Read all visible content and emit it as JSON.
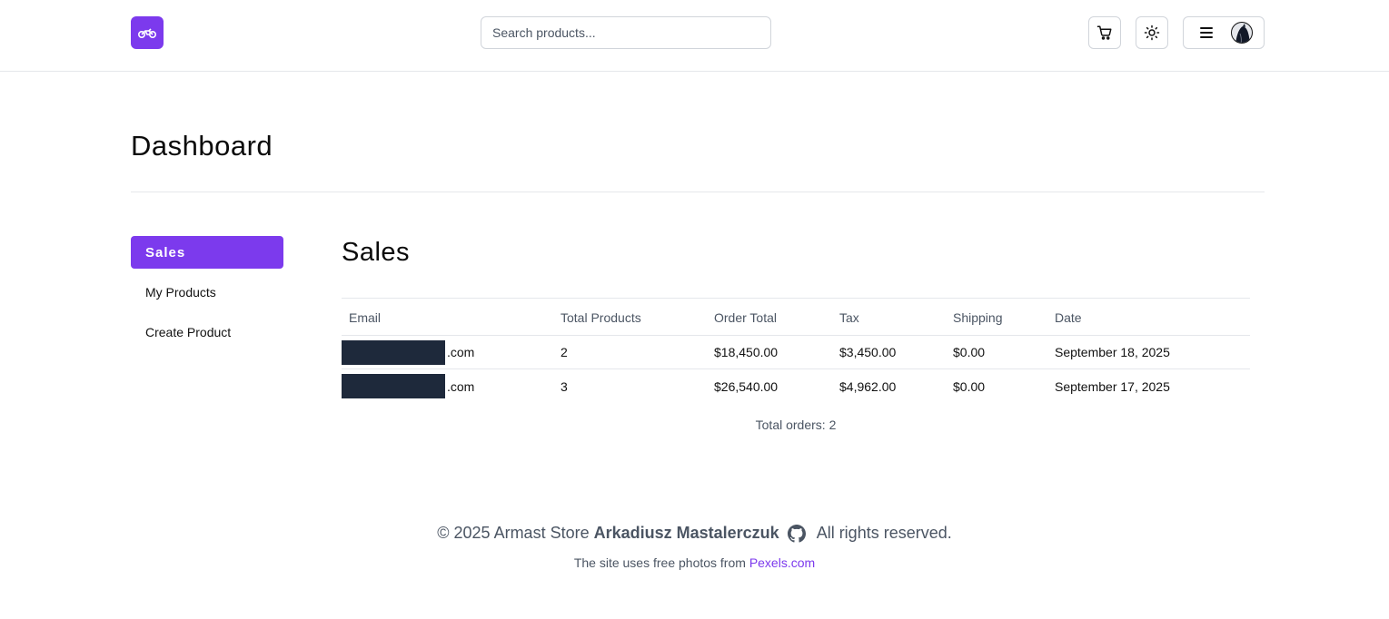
{
  "header": {
    "logo_icon": "motorcycle-icon",
    "search_placeholder": "Search products...",
    "cart_icon": "cart-icon",
    "theme_icon": "sun-icon",
    "menu_icon": "hamburger-icon"
  },
  "page": {
    "title": "Dashboard"
  },
  "sidebar": {
    "items": [
      {
        "label": "Sales",
        "active": true
      },
      {
        "label": "My Products",
        "active": false
      },
      {
        "label": "Create Product",
        "active": false
      }
    ]
  },
  "sales": {
    "title": "Sales",
    "columns": [
      "Email",
      "Total Products",
      "Order Total",
      "Tax",
      "Shipping",
      "Date"
    ],
    "rows": [
      {
        "email_suffix": ".com",
        "total_products": "2",
        "order_total": "$18,450.00",
        "tax": "$3,450.00",
        "shipping": "$0.00",
        "date": "September 18, 2025"
      },
      {
        "email_suffix": ".com",
        "total_products": "3",
        "order_total": "$26,540.00",
        "tax": "$4,962.00",
        "shipping": "$0.00",
        "date": "September 17, 2025"
      }
    ],
    "total_orders": "Total orders: 2"
  },
  "footer": {
    "copyright": "© 2025 Armast Store",
    "author": "Arkadiusz Mastalerczuk",
    "rights": "All rights reserved.",
    "photos_text": "The site uses free photos from",
    "photos_link": "Pexels.com"
  },
  "colors": {
    "accent": "#7c3aed",
    "redaction": "#1e293b"
  }
}
